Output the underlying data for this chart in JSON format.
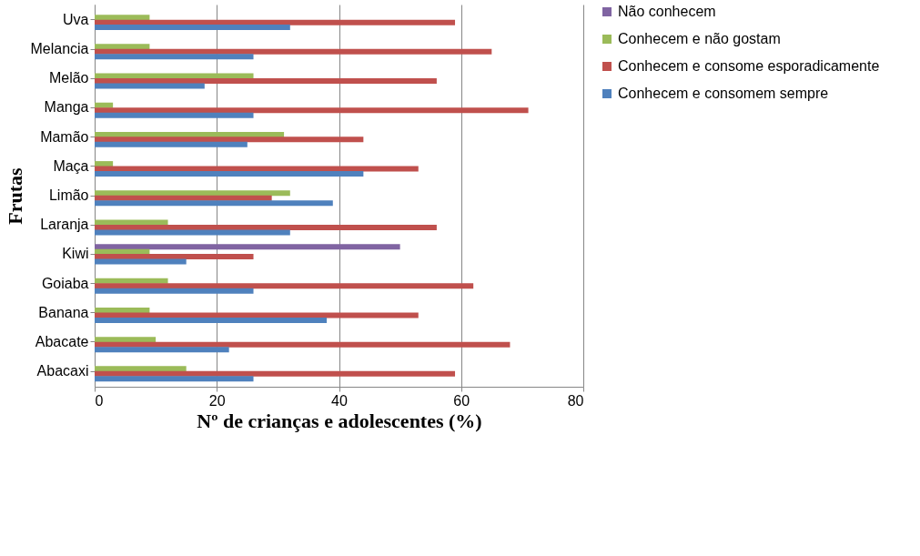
{
  "chart_data": {
    "type": "bar",
    "orientation": "horizontal",
    "xlabel": "Nº de crianças e adolescentes (%)",
    "ylabel": "Frutas",
    "categories": [
      "Uva",
      "Melancia",
      "Melão",
      "Manga",
      "Mamão",
      "Maça",
      "Limão",
      "Laranja",
      "Kiwi",
      "Goiaba",
      "Banana",
      "Abacate",
      "Abacaxi"
    ],
    "series": [
      {
        "name": "Não conhecem",
        "color": "#8064a2",
        "values": [
          0,
          0,
          0,
          0,
          0,
          0,
          0,
          0,
          50,
          0,
          0,
          0,
          0
        ]
      },
      {
        "name": "Conhecem e não gostam",
        "color": "#9bbb59",
        "values": [
          9,
          9,
          26,
          3,
          31,
          3,
          32,
          12,
          9,
          12,
          9,
          10,
          15
        ]
      },
      {
        "name": "Conhecem e consome esporadicamente",
        "color": "#c0504d",
        "values": [
          59,
          65,
          56,
          71,
          44,
          53,
          29,
          56,
          26,
          62,
          53,
          68,
          59
        ]
      },
      {
        "name": "Conhecem e consomem sempre",
        "color": "#4f81bd",
        "values": [
          32,
          26,
          18,
          26,
          25,
          44,
          39,
          32,
          15,
          26,
          38,
          22,
          26
        ]
      }
    ],
    "xlim": [
      0,
      80
    ],
    "xticks": [
      0,
      20,
      40,
      60,
      80
    ],
    "grid": "x",
    "legend": "right"
  }
}
